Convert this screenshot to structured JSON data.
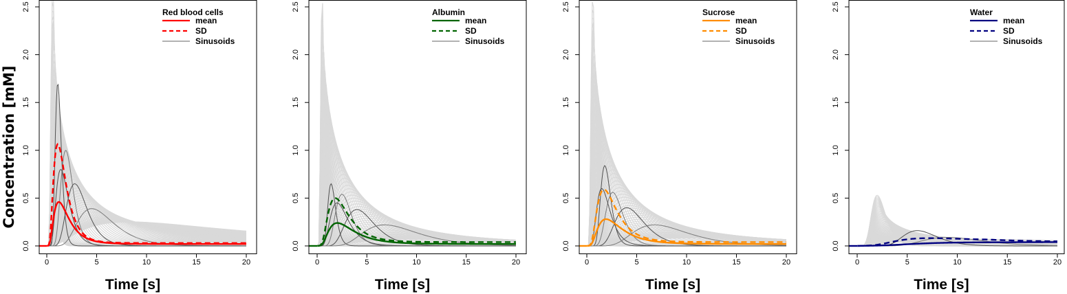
{
  "figure": {
    "ylabel": "Concentration [mM]"
  },
  "chart_data": [
    {
      "type": "line",
      "title": "",
      "xlabel": "Time [s]",
      "ylabel": "Concentration [mM]",
      "xlim": [
        0,
        20
      ],
      "ylim": [
        0,
        2.5
      ],
      "xticks": [
        "0",
        "5",
        "10",
        "15",
        "20"
      ],
      "yticks": [
        "0.0",
        "0.5",
        "1.0",
        "1.5",
        "2.0",
        "2.5"
      ],
      "legend": {
        "title": "Red blood cells",
        "position": "top-right",
        "items": [
          {
            "label": "mean",
            "style": "solid",
            "color": "#ff0000"
          },
          {
            "label": "SD",
            "style": "dashed",
            "color": "#ff0000"
          },
          {
            "label": "Sinusoids",
            "style": "solid",
            "color": "#a6a6a6"
          }
        ]
      },
      "color": "#ff0000",
      "mean": {
        "peak_time": 1.2,
        "peak_value": 0.47,
        "tail": 0.02
      },
      "sd": {
        "peak_time": 1.1,
        "peak_value": 1.08,
        "tail": 0.03
      },
      "sinusoids_highlighted": [
        {
          "peak_time": 1.1,
          "peak_value": 1.7
        },
        {
          "peak_time": 1.9,
          "peak_value": 1.0
        },
        {
          "peak_time": 2.8,
          "peak_value": 0.65
        },
        {
          "peak_time": 4.5,
          "peak_value": 0.39
        },
        {
          "peak_time": 1.4,
          "peak_value": 0.8
        }
      ],
      "sinusoids_envelope": {
        "peak_time": 0.6,
        "peak_value": 2.6,
        "tail_value": 0.18,
        "tail_end": 15
      }
    },
    {
      "type": "line",
      "title": "",
      "xlabel": "Time [s]",
      "ylabel": "",
      "xlim": [
        0,
        20
      ],
      "ylim": [
        0,
        2.5
      ],
      "xticks": [
        "0",
        "5",
        "10",
        "15",
        "20"
      ],
      "yticks": [
        "0.0",
        "0.5",
        "1.0",
        "1.5",
        "2.0",
        "2.5"
      ],
      "legend": {
        "title": "Albumin",
        "position": "top-right",
        "items": [
          {
            "label": "mean",
            "style": "solid",
            "color": "#006400"
          },
          {
            "label": "SD",
            "style": "dashed",
            "color": "#006400"
          },
          {
            "label": "Sinusoids",
            "style": "solid",
            "color": "#a6a6a6"
          }
        ]
      },
      "color": "#006400",
      "mean": {
        "peak_time": 2.0,
        "peak_value": 0.25,
        "tail": 0.02
      },
      "sd": {
        "peak_time": 1.8,
        "peak_value": 0.52,
        "tail": 0.04
      },
      "sinusoids_highlighted": [
        {
          "peak_time": 1.4,
          "peak_value": 0.65
        },
        {
          "peak_time": 2.5,
          "peak_value": 0.54
        },
        {
          "peak_time": 4.0,
          "peak_value": 0.38
        },
        {
          "peak_time": 6.8,
          "peak_value": 0.22
        },
        {
          "peak_time": 2.0,
          "peak_value": 0.45
        }
      ],
      "sinusoids_envelope": {
        "peak_time": 0.5,
        "peak_value": 2.6,
        "tail_value": 0.05,
        "tail_end": 20
      }
    },
    {
      "type": "line",
      "title": "",
      "xlabel": "Time [s]",
      "ylabel": "",
      "xlim": [
        0,
        20
      ],
      "ylim": [
        0,
        2.5
      ],
      "xticks": [
        "0",
        "5",
        "10",
        "15",
        "20"
      ],
      "yticks": [
        "0.0",
        "0.5",
        "1.0",
        "1.5",
        "2.0",
        "2.5"
      ],
      "legend": {
        "title": "Sucrose",
        "position": "top-right",
        "items": [
          {
            "label": "mean",
            "style": "solid",
            "color": "#ff8c00"
          },
          {
            "label": "SD",
            "style": "dashed",
            "color": "#ff8c00"
          },
          {
            "label": "Sinusoids",
            "style": "solid",
            "color": "#a6a6a6"
          }
        ]
      },
      "color": "#ff8c00",
      "mean": {
        "peak_time": 1.9,
        "peak_value": 0.29,
        "tail": 0.02
      },
      "sd": {
        "peak_time": 1.7,
        "peak_value": 0.61,
        "tail": 0.04
      },
      "sinusoids_highlighted": [
        {
          "peak_time": 1.8,
          "peak_value": 0.84
        },
        {
          "peak_time": 2.6,
          "peak_value": 0.56
        },
        {
          "peak_time": 4.0,
          "peak_value": 0.4
        },
        {
          "peak_time": 6.8,
          "peak_value": 0.22
        },
        {
          "peak_time": 1.5,
          "peak_value": 0.6
        }
      ],
      "sinusoids_envelope": {
        "peak_time": 0.6,
        "peak_value": 2.6,
        "tail_value": 0.06,
        "tail_end": 20
      }
    },
    {
      "type": "line",
      "title": "",
      "xlabel": "Time [s]",
      "ylabel": "",
      "xlim": [
        0,
        20
      ],
      "ylim": [
        0,
        2.5
      ],
      "xticks": [
        "0",
        "5",
        "10",
        "15",
        "20"
      ],
      "yticks": [
        "0.0",
        "0.5",
        "1.0",
        "1.5",
        "2.0",
        "2.5"
      ],
      "legend": {
        "title": "Water",
        "position": "top-right",
        "items": [
          {
            "label": "mean",
            "style": "solid",
            "color": "#000080"
          },
          {
            "label": "SD",
            "style": "dashed",
            "color": "#000080"
          },
          {
            "label": "Sinusoids",
            "style": "solid",
            "color": "#a6a6a6"
          }
        ]
      },
      "color": "#000080",
      "mean": {
        "peak_time": 10.0,
        "peak_value": 0.05,
        "tail": 0.03
      },
      "sd": {
        "peak_time": 6.5,
        "peak_value": 0.1,
        "tail": 0.04
      },
      "sinusoids_highlighted": [
        {
          "peak_time": 6.0,
          "peak_value": 0.16
        },
        {
          "peak_time": 9.0,
          "peak_value": 0.09
        }
      ],
      "sinusoids_envelope": {
        "peak_time": 2.0,
        "peak_value": 0.5,
        "tail_value": 0.05,
        "tail_end": 20
      }
    }
  ]
}
